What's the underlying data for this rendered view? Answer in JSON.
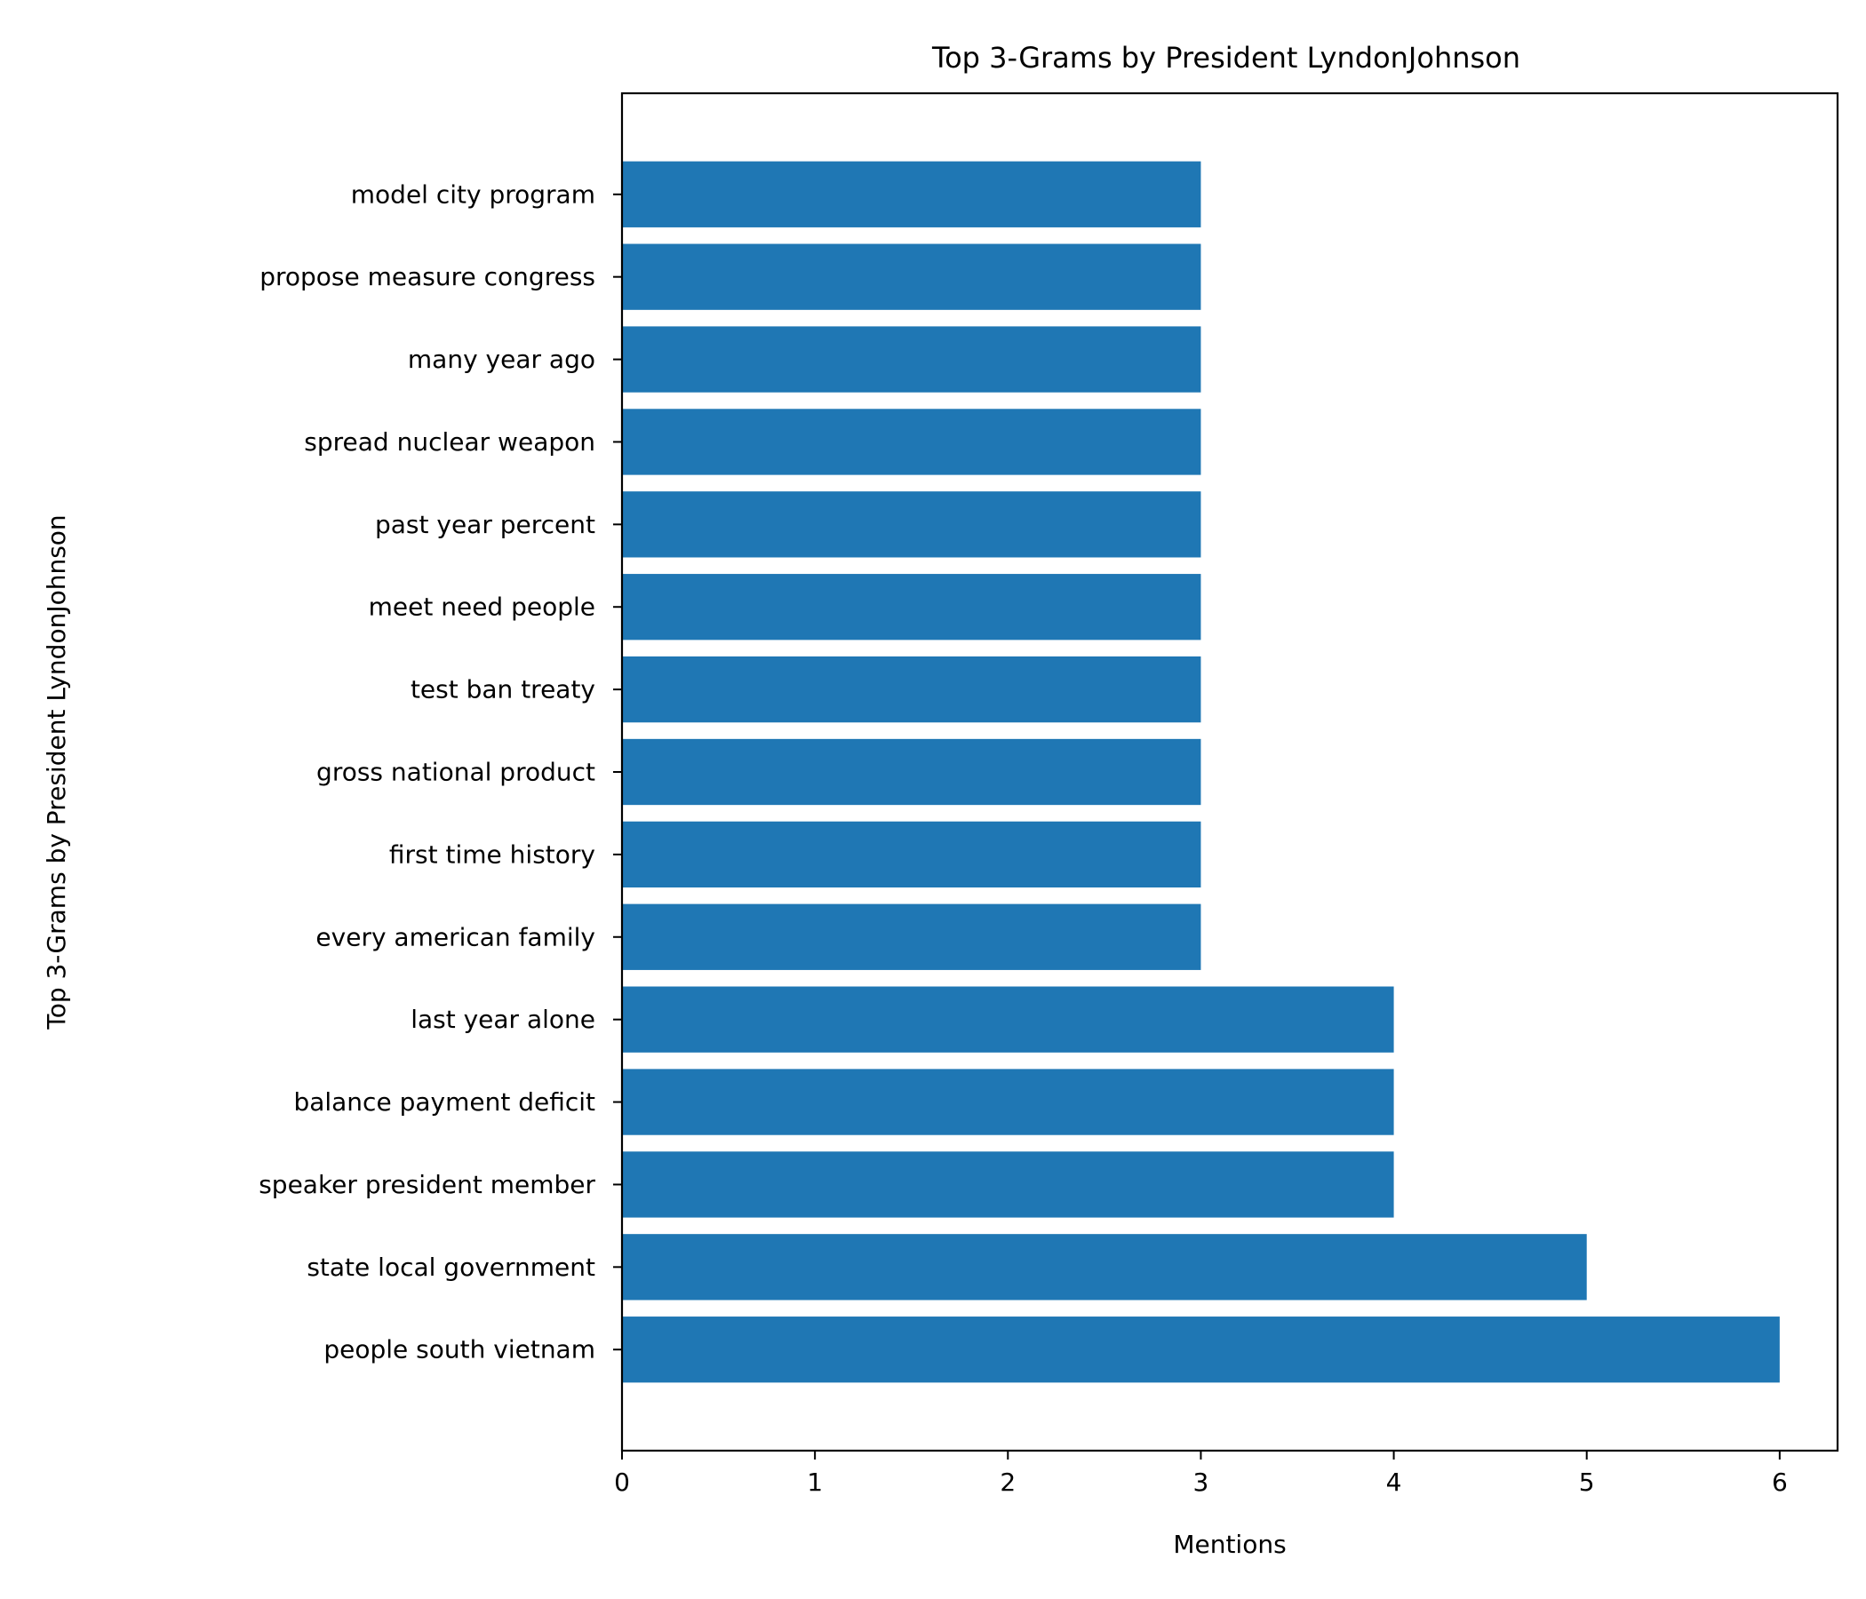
{
  "chart_data": {
    "type": "bar",
    "orientation": "horizontal",
    "title": "Top 3-Grams by President LyndonJohnson",
    "xlabel": "Mentions",
    "ylabel": "Top 3-Grams by President LyndonJohnson",
    "categories": [
      "people south vietnam",
      "state local government",
      "speaker president member",
      "balance payment deficit",
      "last year alone",
      "every american family",
      "first time history",
      "gross national product",
      "test ban treaty",
      "meet need people",
      "past year percent",
      "spread nuclear weapon",
      "many year ago",
      "propose measure congress",
      "model city program"
    ],
    "values": [
      6,
      5,
      4,
      4,
      4,
      3,
      3,
      3,
      3,
      3,
      3,
      3,
      3,
      3,
      3
    ],
    "xlim": [
      0,
      6.3
    ],
    "xticks": [
      0,
      1,
      2,
      3,
      4,
      5,
      6
    ],
    "bar_color": "#1f77b4",
    "grid": false,
    "legend": "none"
  }
}
